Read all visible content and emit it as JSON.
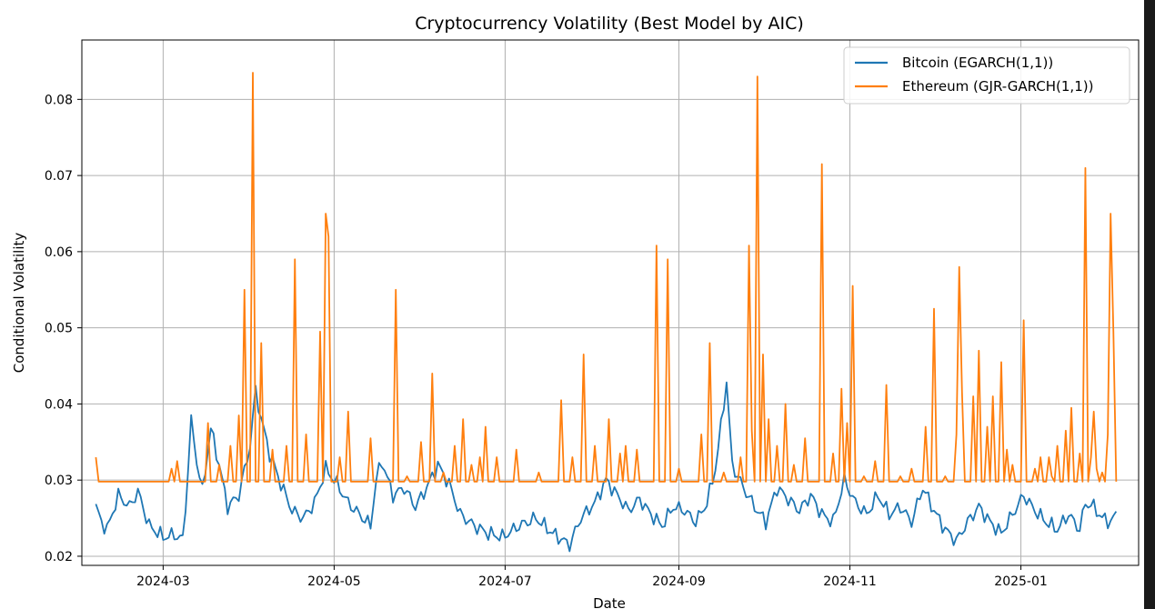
{
  "chart_data": {
    "type": "line",
    "title": "Cryptocurrency Volatility (Best Model by AIC)",
    "xlabel": "Date",
    "ylabel": "Conditional Volatility",
    "xlim": [
      "2024-02-01",
      "2025-02-12"
    ],
    "ylim": [
      0.0188,
      0.0878
    ],
    "x_ticks": [
      "2024-03",
      "2024-05",
      "2024-07",
      "2024-09",
      "2024-11",
      "2025-01"
    ],
    "y_ticks": [
      0.02,
      0.03,
      0.04,
      0.05,
      0.06,
      0.07,
      0.08
    ],
    "y_tick_labels": [
      "0.02",
      "0.03",
      "0.04",
      "0.05",
      "0.06",
      "0.07",
      "0.08"
    ],
    "grid": true,
    "legend": "top-right",
    "x_start": "2024-02-06",
    "x_end": "2025-02-04",
    "series": [
      {
        "name": "Bitcoin (EGARCH(1,1))",
        "color": "#1f77b4",
        "keypoints": [
          [
            "2024-02-06",
            0.0265
          ],
          [
            "2024-02-08",
            0.0245
          ],
          [
            "2024-02-10",
            0.0235
          ],
          [
            "2024-02-14",
            0.028
          ],
          [
            "2024-02-18",
            0.0265
          ],
          [
            "2024-02-21",
            0.0285
          ],
          [
            "2024-02-25",
            0.024
          ],
          [
            "2024-03-01",
            0.0225
          ],
          [
            "2024-03-05",
            0.0228
          ],
          [
            "2024-03-08",
            0.0222
          ],
          [
            "2024-03-09",
            0.0265
          ],
          [
            "2024-03-11",
            0.0378
          ],
          [
            "2024-03-13",
            0.0325
          ],
          [
            "2024-03-15",
            0.0285
          ],
          [
            "2024-03-18",
            0.0368
          ],
          [
            "2024-03-21",
            0.032
          ],
          [
            "2024-03-24",
            0.0265
          ],
          [
            "2024-03-28",
            0.028
          ],
          [
            "2024-04-01",
            0.0345
          ],
          [
            "2024-04-03",
            0.0418
          ],
          [
            "2024-04-05",
            0.038
          ],
          [
            "2024-04-08",
            0.0335
          ],
          [
            "2024-04-12",
            0.0295
          ],
          [
            "2024-04-16",
            0.026
          ],
          [
            "2024-04-20",
            0.025
          ],
          [
            "2024-04-24",
            0.027
          ],
          [
            "2024-04-28",
            0.0315
          ],
          [
            "2024-05-02",
            0.0295
          ],
          [
            "2024-05-06",
            0.027
          ],
          [
            "2024-05-10",
            0.0255
          ],
          [
            "2024-05-14",
            0.024
          ],
          [
            "2024-05-16",
            0.03
          ],
          [
            "2024-05-18",
            0.0325
          ],
          [
            "2024-05-22",
            0.028
          ],
          [
            "2024-05-26",
            0.029
          ],
          [
            "2024-05-30",
            0.0265
          ],
          [
            "2024-06-03",
            0.029
          ],
          [
            "2024-06-07",
            0.032
          ],
          [
            "2024-06-11",
            0.0295
          ],
          [
            "2024-06-15",
            0.0255
          ],
          [
            "2024-06-20",
            0.024
          ],
          [
            "2024-06-25",
            0.023
          ],
          [
            "2024-06-30",
            0.0225
          ],
          [
            "2024-07-06",
            0.024
          ],
          [
            "2024-07-12",
            0.025
          ],
          [
            "2024-07-18",
            0.023
          ],
          [
            "2024-07-24",
            0.0215
          ],
          [
            "2024-07-28",
            0.025
          ],
          [
            "2024-08-02",
            0.027
          ],
          [
            "2024-08-06",
            0.03
          ],
          [
            "2024-08-10",
            0.028
          ],
          [
            "2024-08-14",
            0.026
          ],
          [
            "2024-08-18",
            0.0275
          ],
          [
            "2024-08-22",
            0.0255
          ],
          [
            "2024-08-26",
            0.024
          ],
          [
            "2024-08-30",
            0.0265
          ],
          [
            "2024-09-03",
            0.026
          ],
          [
            "2024-09-07",
            0.0245
          ],
          [
            "2024-09-11",
            0.027
          ],
          [
            "2024-09-14",
            0.0315
          ],
          [
            "2024-09-16",
            0.037
          ],
          [
            "2024-09-18",
            0.043
          ],
          [
            "2024-09-20",
            0.032
          ],
          [
            "2024-09-24",
            0.029
          ],
          [
            "2024-09-28",
            0.0265
          ],
          [
            "2024-10-02",
            0.0245
          ],
          [
            "2024-10-06",
            0.029
          ],
          [
            "2024-10-10",
            0.0275
          ],
          [
            "2024-10-14",
            0.026
          ],
          [
            "2024-10-18",
            0.028
          ],
          [
            "2024-10-22",
            0.0255
          ],
          [
            "2024-10-26",
            0.0245
          ],
          [
            "2024-10-30",
            0.03
          ],
          [
            "2024-11-03",
            0.027
          ],
          [
            "2024-11-07",
            0.0255
          ],
          [
            "2024-11-11",
            0.028
          ],
          [
            "2024-11-15",
            0.0255
          ],
          [
            "2024-11-19",
            0.0265
          ],
          [
            "2024-11-23",
            0.0245
          ],
          [
            "2024-11-27",
            0.029
          ],
          [
            "2024-12-01",
            0.026
          ],
          [
            "2024-12-05",
            0.0235
          ],
          [
            "2024-12-09",
            0.022
          ],
          [
            "2024-12-13",
            0.0245
          ],
          [
            "2024-12-17",
            0.0265
          ],
          [
            "2024-12-21",
            0.0245
          ],
          [
            "2024-12-25",
            0.023
          ],
          [
            "2024-12-29",
            0.0255
          ],
          [
            "2025-01-02",
            0.028
          ],
          [
            "2025-01-06",
            0.026
          ],
          [
            "2025-01-10",
            0.0245
          ],
          [
            "2025-01-14",
            0.0235
          ],
          [
            "2025-01-18",
            0.0255
          ],
          [
            "2025-01-22",
            0.0235
          ],
          [
            "2025-01-24",
            0.027
          ],
          [
            "2025-01-27",
            0.0265
          ],
          [
            "2025-01-30",
            0.025
          ],
          [
            "2025-02-02",
            0.0245
          ],
          [
            "2025-02-04",
            0.0255
          ]
        ]
      },
      {
        "name": "Ethereum (GJR-GARCH(1,1))",
        "color": "#ff7f0e",
        "baseline": 0.0298,
        "spikes": [
          [
            "2024-02-06",
            0.033
          ],
          [
            "2024-03-04",
            0.0315
          ],
          [
            "2024-03-06",
            0.0325
          ],
          [
            "2024-03-17",
            0.0375
          ],
          [
            "2024-03-21",
            0.032
          ],
          [
            "2024-03-25",
            0.0345
          ],
          [
            "2024-03-28",
            0.0385
          ],
          [
            "2024-03-30",
            0.055
          ],
          [
            "2024-04-02",
            0.0835
          ],
          [
            "2024-04-05",
            0.048
          ],
          [
            "2024-04-09",
            0.034
          ],
          [
            "2024-04-14",
            0.0345
          ],
          [
            "2024-04-17",
            0.059
          ],
          [
            "2024-04-21",
            0.036
          ],
          [
            "2024-04-26",
            0.0495
          ],
          [
            "2024-04-28",
            0.065
          ],
          [
            "2024-04-29",
            0.062
          ],
          [
            "2024-05-03",
            0.033
          ],
          [
            "2024-05-06",
            0.039
          ],
          [
            "2024-05-14",
            0.0355
          ],
          [
            "2024-05-23",
            0.055
          ],
          [
            "2024-05-27",
            0.0305
          ],
          [
            "2024-06-01",
            0.035
          ],
          [
            "2024-06-05",
            0.044
          ],
          [
            "2024-06-09",
            0.031
          ],
          [
            "2024-06-13",
            0.0345
          ],
          [
            "2024-06-16",
            0.038
          ],
          [
            "2024-06-19",
            0.032
          ],
          [
            "2024-06-22",
            0.033
          ],
          [
            "2024-06-24",
            0.037
          ],
          [
            "2024-06-28",
            0.033
          ],
          [
            "2024-07-05",
            0.034
          ],
          [
            "2024-07-13",
            0.031
          ],
          [
            "2024-07-21",
            0.0405
          ],
          [
            "2024-07-25",
            0.033
          ],
          [
            "2024-07-29",
            0.0465
          ],
          [
            "2024-08-02",
            0.0345
          ],
          [
            "2024-08-07",
            0.038
          ],
          [
            "2024-08-11",
            0.0335
          ],
          [
            "2024-08-13",
            0.0345
          ],
          [
            "2024-08-17",
            0.034
          ],
          [
            "2024-08-24",
            0.0608
          ],
          [
            "2024-08-28",
            0.059
          ],
          [
            "2024-09-01",
            0.0315
          ],
          [
            "2024-09-09",
            0.036
          ],
          [
            "2024-09-12",
            0.048
          ],
          [
            "2024-09-17",
            0.031
          ],
          [
            "2024-09-23",
            0.033
          ],
          [
            "2024-09-26",
            0.0608
          ],
          [
            "2024-09-27",
            0.0365
          ],
          [
            "2024-09-29",
            0.083
          ],
          [
            "2024-10-01",
            0.0465
          ],
          [
            "2024-10-03",
            0.038
          ],
          [
            "2024-10-06",
            0.0345
          ],
          [
            "2024-10-09",
            0.04
          ],
          [
            "2024-10-12",
            0.032
          ],
          [
            "2024-10-16",
            0.0355
          ],
          [
            "2024-10-22",
            0.0715
          ],
          [
            "2024-10-26",
            0.0335
          ],
          [
            "2024-10-29",
            0.042
          ],
          [
            "2024-10-31",
            0.0375
          ],
          [
            "2024-11-02",
            0.0555
          ],
          [
            "2024-11-06",
            0.0305
          ],
          [
            "2024-11-10",
            0.0325
          ],
          [
            "2024-11-14",
            0.0425
          ],
          [
            "2024-11-19",
            0.0305
          ],
          [
            "2024-11-23",
            0.0315
          ],
          [
            "2024-11-28",
            0.037
          ],
          [
            "2024-12-01",
            0.0525
          ],
          [
            "2024-12-05",
            0.0305
          ],
          [
            "2024-12-09",
            0.036
          ],
          [
            "2024-12-20",
            0.037
          ],
          [
            "2024-12-22",
            0.041
          ],
          [
            "2024-12-25",
            0.0455
          ],
          [
            "2024-12-27",
            0.034
          ],
          [
            "2025-01-02",
            0.051
          ],
          [
            "2025-01-06",
            0.0315
          ],
          [
            "2025-01-11",
            0.033
          ],
          [
            "2025-01-14",
            0.0345
          ],
          [
            "2025-01-17",
            0.0365
          ],
          [
            "2025-01-19",
            0.0395
          ],
          [
            "2025-01-22",
            0.0335
          ],
          [
            "2025-01-28",
            0.0315
          ],
          [
            "2025-02-02",
            0.065
          ]
        ],
        "late_spikes": [
          [
            "2024-12-10",
            0.058
          ],
          [
            "2024-12-11",
            0.0415
          ],
          [
            "2024-12-15",
            0.041
          ],
          [
            "2024-12-17",
            0.047
          ],
          [
            "2024-12-29",
            0.032
          ],
          [
            "2025-01-08",
            0.033
          ],
          [
            "2025-01-12",
            0.0305
          ],
          [
            "2025-01-19",
            0.0305
          ],
          [
            "2025-01-24",
            0.071
          ],
          [
            "2025-01-26",
            0.033
          ],
          [
            "2025-01-27",
            0.039
          ],
          [
            "2025-01-30",
            0.031
          ],
          [
            "2025-02-01",
            0.036
          ],
          [
            "2025-02-03",
            0.0495
          ]
        ]
      }
    ]
  }
}
